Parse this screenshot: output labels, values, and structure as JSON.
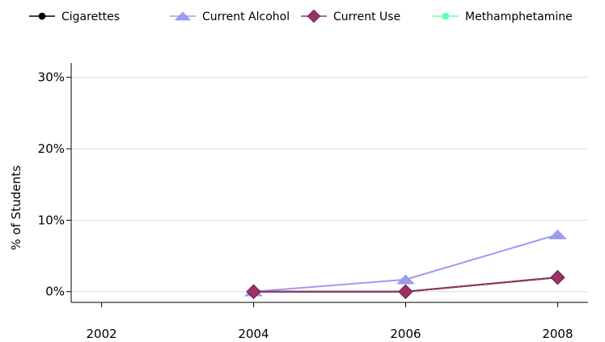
{
  "chart_data": {
    "type": "line",
    "ylabel": "% of Students",
    "x": [
      2002,
      2004,
      2006,
      2008
    ],
    "x_tick_labels": [
      "2002",
      "2004",
      "2006",
      "2008"
    ],
    "y_tick_values": [
      0,
      10,
      20,
      30
    ],
    "y_tick_labels": [
      "0%",
      "10%",
      "20%",
      "30%"
    ],
    "ylim": [
      -1.5,
      32
    ],
    "xlim": [
      2001.6,
      2008.4
    ],
    "grid": "horizontal",
    "legend_position": "top",
    "series": [
      {
        "name": "Cigarettes",
        "color": "#000000",
        "marker": "circle",
        "values": [
          null,
          0,
          0,
          2
        ]
      },
      {
        "name": "Current Alcohol",
        "color": "#9b9bf0",
        "marker": "triangle",
        "values": [
          null,
          0,
          1.7,
          8
        ]
      },
      {
        "name": "Current Use",
        "color": "#993366",
        "marker": "diamond",
        "values": [
          null,
          0,
          0,
          2
        ]
      },
      {
        "name": "Methamphetamine",
        "color": "#66ffb2",
        "marker": "square",
        "values": [
          null,
          0,
          0,
          2
        ]
      }
    ]
  }
}
